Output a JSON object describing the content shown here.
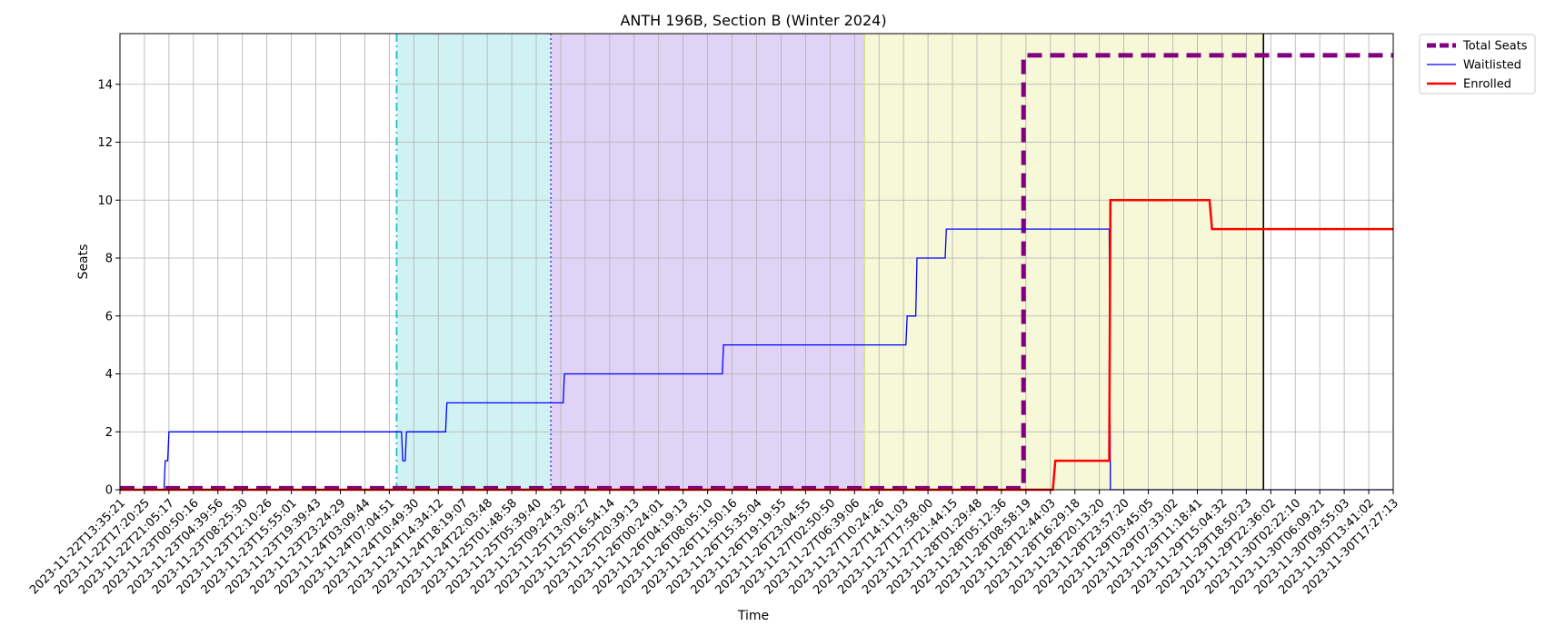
{
  "chart_data": {
    "type": "line",
    "title": "ANTH 196B, Section B (Winter 2024)",
    "xlabel": "Time",
    "ylabel": "Seats",
    "ylim": [
      0,
      15.75
    ],
    "y_ticks": [
      0,
      2,
      4,
      6,
      8,
      10,
      12,
      14
    ],
    "grid": true,
    "legend_position": "outside-top-right",
    "x_ticks": [
      "2023-11-22T13:35:21",
      "2023-11-22T17:20:25",
      "2023-11-22T21:05:17",
      "2023-11-23T00:50:16",
      "2023-11-23T04:39:56",
      "2023-11-23T08:25:30",
      "2023-11-23T12:10:26",
      "2023-11-23T15:55:01",
      "2023-11-23T19:39:43",
      "2023-11-23T23:24:29",
      "2023-11-24T03:09:44",
      "2023-11-24T07:04:51",
      "2023-11-24T10:49:30",
      "2023-11-24T14:34:12",
      "2023-11-24T18:19:07",
      "2023-11-24T22:03:48",
      "2023-11-25T01:48:58",
      "2023-11-25T05:39:40",
      "2023-11-25T09:24:32",
      "2023-11-25T13:09:27",
      "2023-11-25T16:54:14",
      "2023-11-25T20:39:13",
      "2023-11-26T00:24:01",
      "2023-11-26T04:19:13",
      "2023-11-26T08:05:10",
      "2023-11-26T11:50:16",
      "2023-11-26T15:35:04",
      "2023-11-26T19:19:55",
      "2023-11-26T23:04:55",
      "2023-11-27T02:50:50",
      "2023-11-27T06:39:06",
      "2023-11-27T10:24:26",
      "2023-11-27T14:11:03",
      "2023-11-27T17:58:00",
      "2023-11-27T21:44:15",
      "2023-11-28T01:29:48",
      "2023-11-28T05:12:36",
      "2023-11-28T08:58:19",
      "2023-11-28T12:44:03",
      "2023-11-28T16:29:18",
      "2023-11-28T20:13:20",
      "2023-11-28T23:57:20",
      "2023-11-29T03:45:05",
      "2023-11-29T07:33:02",
      "2023-11-29T11:18:41",
      "2023-11-29T15:04:32",
      "2023-11-29T18:50:23",
      "2023-11-29T22:36:02",
      "2023-11-30T02:22:10",
      "2023-11-30T06:09:21",
      "2023-11-30T09:55:03",
      "2023-11-30T13:41:02",
      "2023-11-30T17:27:13"
    ],
    "x_range": [
      0,
      52
    ],
    "regions": [
      {
        "start": 11.3,
        "end": 17.6,
        "color": "#d0f2f3"
      },
      {
        "start": 17.6,
        "end": 30.4,
        "color": "#e1d3f5"
      },
      {
        "start": 30.4,
        "end": 46.7,
        "color": "#f7f8d8"
      }
    ],
    "vlines": [
      {
        "x": 11.3,
        "color": "#1ec0c0",
        "style": "dashdot"
      },
      {
        "x": 17.6,
        "color": "#7a40d8",
        "style": "dotted"
      },
      {
        "x": 30.4,
        "color": "#dde08a",
        "style": "solid"
      },
      {
        "x": 46.7,
        "color": "#000000",
        "style": "solid"
      }
    ],
    "series": [
      {
        "name": "Total Seats",
        "color": "#800080",
        "style": "dashed",
        "width": 5,
        "points": [
          [
            0,
            0.05
          ],
          [
            36.9,
            0.05
          ],
          [
            36.9,
            15
          ],
          [
            52,
            15
          ]
        ]
      },
      {
        "name": "Waitlisted",
        "color": "#0000ff",
        "style": "solid",
        "width": 1.3,
        "points": [
          [
            0,
            0
          ],
          [
            1.8,
            0
          ],
          [
            1.85,
            1
          ],
          [
            1.95,
            1
          ],
          [
            2.0,
            2
          ],
          [
            11.5,
            2
          ],
          [
            11.55,
            1
          ],
          [
            11.65,
            1
          ],
          [
            11.7,
            2
          ],
          [
            13.3,
            2
          ],
          [
            13.35,
            3
          ],
          [
            18.1,
            3
          ],
          [
            18.15,
            4
          ],
          [
            24.6,
            4
          ],
          [
            24.65,
            5
          ],
          [
            32.1,
            5
          ],
          [
            32.15,
            6
          ],
          [
            32.5,
            6
          ],
          [
            32.55,
            8
          ],
          [
            33.7,
            8
          ],
          [
            33.75,
            9
          ],
          [
            40.4,
            9
          ],
          [
            40.45,
            0
          ],
          [
            52,
            0
          ]
        ]
      },
      {
        "name": "Enrolled",
        "color": "#ff0000",
        "style": "solid",
        "width": 2.5,
        "points": [
          [
            0,
            0
          ],
          [
            38.1,
            0
          ],
          [
            38.2,
            1
          ],
          [
            40.4,
            1
          ],
          [
            40.45,
            10
          ],
          [
            44.5,
            10
          ],
          [
            44.6,
            9
          ],
          [
            52,
            9
          ]
        ]
      }
    ]
  }
}
